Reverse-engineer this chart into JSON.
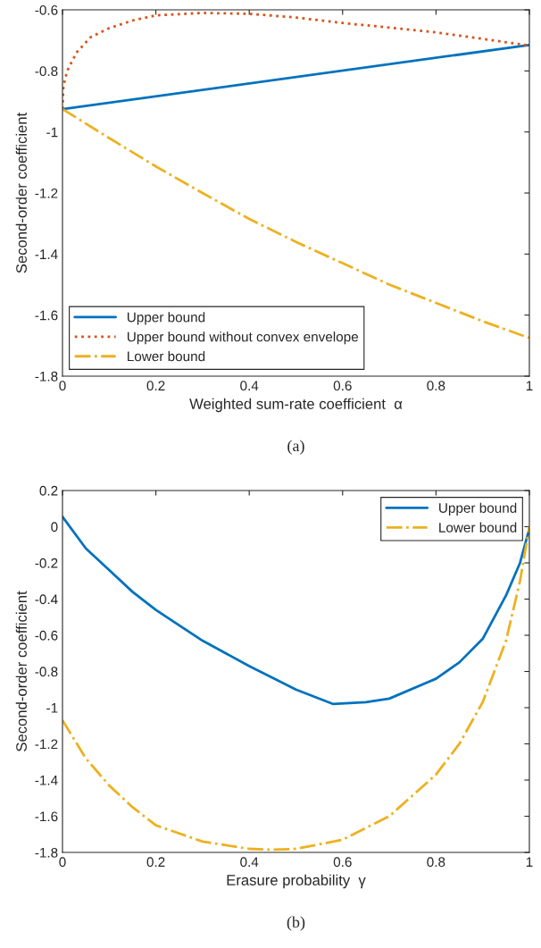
{
  "chart_data": [
    {
      "type": "line",
      "xlabel": "Weighted sum-rate coefficient  α",
      "ylabel": "Second-order coefficient",
      "annotations": [
        "(a)"
      ],
      "xlim": [
        0,
        1
      ],
      "ylim": [
        -1.8,
        -0.6
      ],
      "xticks": [
        0,
        0.2,
        0.4,
        0.6,
        0.8,
        1
      ],
      "yticks": [
        -1.8,
        -1.6,
        -1.4,
        -1.2,
        -1,
        -0.8,
        -0.6
      ],
      "grid": false,
      "legend": "bottom left",
      "series": [
        {
          "name": "Upper bound",
          "color": "#0072bd",
          "line_style": "solid",
          "x": [
            0,
            1
          ],
          "values": [
            -0.925,
            -0.715
          ]
        },
        {
          "name": "Upper bound without convex envelope",
          "color": "#d95319",
          "line_style": "dotted",
          "x": [
            0,
            0.002,
            0.01,
            0.03,
            0.06,
            0.1,
            0.15,
            0.2,
            0.3,
            0.4,
            0.5,
            0.6,
            0.7,
            0.8,
            0.9,
            1
          ],
          "values": [
            -0.925,
            -0.85,
            -0.8,
            -0.74,
            -0.69,
            -0.66,
            -0.635,
            -0.618,
            -0.61,
            -0.613,
            -0.625,
            -0.643,
            -0.658,
            -0.674,
            -0.695,
            -0.717
          ]
        },
        {
          "name": "Lower bound",
          "color": "#edb120",
          "line_style": "dashdot",
          "x": [
            0,
            0.1,
            0.2,
            0.3,
            0.4,
            0.5,
            0.6,
            0.7,
            0.8,
            0.9,
            1
          ],
          "values": [
            -0.925,
            -1.02,
            -1.113,
            -1.2,
            -1.285,
            -1.36,
            -1.43,
            -1.5,
            -1.56,
            -1.62,
            -1.675
          ]
        }
      ]
    },
    {
      "type": "line",
      "xlabel": "Erasure probability  γ",
      "ylabel": "Second-order coefficient",
      "annotations": [
        "(b)"
      ],
      "xlim": [
        0,
        1
      ],
      "ylim": [
        -1.8,
        0.2
      ],
      "xticks": [
        0,
        0.2,
        0.4,
        0.6,
        0.8,
        1
      ],
      "yticks": [
        -1.8,
        -1.6,
        -1.4,
        -1.2,
        -1,
        -0.8,
        -0.6,
        -0.4,
        -0.2,
        0,
        0.2
      ],
      "grid": false,
      "legend": "top right",
      "series": [
        {
          "name": "Upper bound",
          "color": "#0072bd",
          "line_style": "solid",
          "x": [
            0,
            0.05,
            0.1,
            0.15,
            0.2,
            0.3,
            0.4,
            0.5,
            0.58,
            0.65,
            0.7,
            0.8,
            0.85,
            0.9,
            0.95,
            0.98,
            1
          ],
          "values": [
            0.055,
            -0.12,
            -0.24,
            -0.36,
            -0.46,
            -0.63,
            -0.77,
            -0.9,
            -0.98,
            -0.97,
            -0.95,
            -0.84,
            -0.75,
            -0.62,
            -0.38,
            -0.2,
            -0.01
          ]
        },
        {
          "name": "Lower bound",
          "color": "#edb120",
          "line_style": "dashdot",
          "x": [
            0,
            0.05,
            0.1,
            0.15,
            0.2,
            0.3,
            0.4,
            0.45,
            0.5,
            0.6,
            0.7,
            0.8,
            0.85,
            0.9,
            0.95,
            0.98,
            1
          ],
          "values": [
            -1.07,
            -1.28,
            -1.43,
            -1.55,
            -1.65,
            -1.74,
            -1.78,
            -1.785,
            -1.78,
            -1.73,
            -1.6,
            -1.37,
            -1.2,
            -0.97,
            -0.63,
            -0.3,
            0
          ]
        }
      ]
    }
  ]
}
